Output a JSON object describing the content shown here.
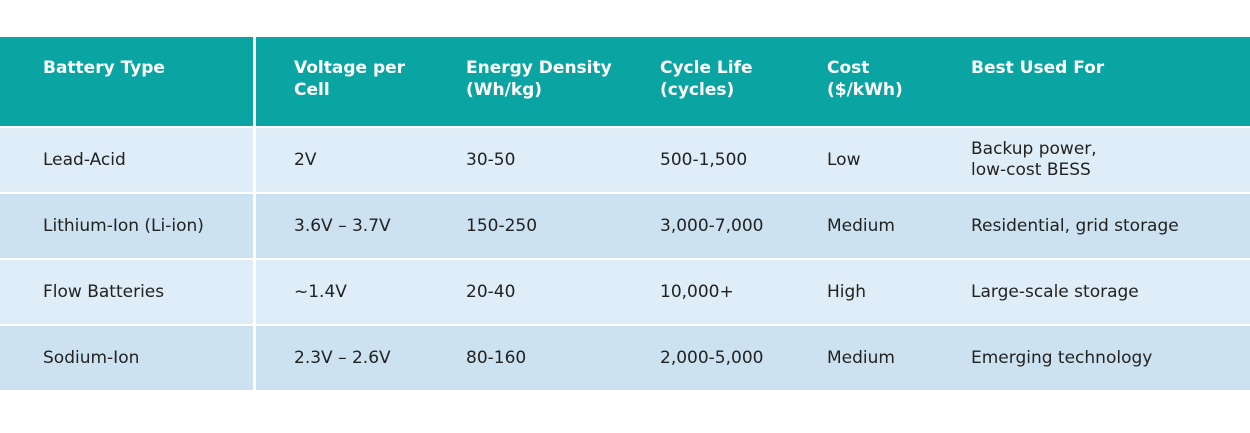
{
  "table": {
    "headers": [
      "Battery Type",
      "Voltage per\nCell",
      "Energy Density\n(Wh/kg)",
      "Cycle Life\n(cycles)",
      "Cost\n($/kWh)",
      "Best Used For"
    ],
    "rows": [
      [
        "Lead-Acid",
        "2V",
        "30-50",
        "500-1,500",
        "Low",
        "Backup power,\nlow-cost BESS"
      ],
      [
        "Lithium-Ion (Li-ion)",
        "3.6V – 3.7V",
        "150-250",
        "3,000-7,000",
        "Medium",
        "Residential, grid storage"
      ],
      [
        "Flow Batteries",
        "~1.4V",
        "20-40",
        "10,000+",
        "High",
        "Large-scale storage"
      ],
      [
        "Sodium-Ion",
        "2.3V – 2.6V",
        "80-160",
        "2,000-5,000",
        "Medium",
        "Emerging technology"
      ]
    ]
  },
  "colors": {
    "header_bg": "#0aa5a3",
    "row_light": "#deedf7",
    "row_dark": "#cde2f1"
  }
}
